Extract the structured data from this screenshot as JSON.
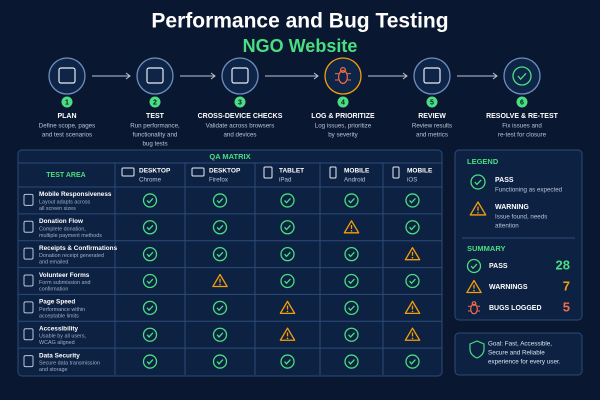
{
  "header": {
    "title": "Performance and Bug Testing",
    "subtitle": "NGO Website"
  },
  "steps": [
    {
      "number": 1,
      "title": "PLAN",
      "description": [
        "Define scope, pages",
        "and test scenarios"
      ]
    },
    {
      "number": 2,
      "title": "TEST",
      "description": [
        "Run performance,",
        "functionality and",
        "bug tests"
      ]
    },
    {
      "number": 3,
      "title": "CROSS-DEVICE CHECKS",
      "description": [
        "Validate across browsers",
        "and devices"
      ]
    },
    {
      "number": 4,
      "title": "LOG & PRIORITIZE",
      "description": [
        "Log issues, prioritize",
        "by severity"
      ]
    },
    {
      "number": 5,
      "title": "REVIEW",
      "description": [
        "Review results",
        "and metrics"
      ]
    },
    {
      "number": 6,
      "title": "RESOLVE & RE-TEST",
      "description": [
        "Fix issues and",
        "re-test for closure"
      ]
    }
  ],
  "matrix": {
    "title": "QA MATRIX",
    "area_header": "TEST AREA",
    "columns": [
      {
        "device": "DESKTOP",
        "browser": "Chrome"
      },
      {
        "device": "DESKTOP",
        "browser": "Firefox"
      },
      {
        "device": "TABLET",
        "browser": "iPad"
      },
      {
        "device": "MOBILE",
        "browser": "Android"
      },
      {
        "device": "MOBILE",
        "browser": "iOS"
      }
    ],
    "rows": [
      {
        "area": "Mobile Responsiveness",
        "description": [
          "Layout adapts across",
          "all screen sizes"
        ],
        "statuses": [
          "pass",
          "pass",
          "pass",
          "pass",
          "pass"
        ]
      },
      {
        "area": "Donation Flow",
        "description": [
          "Complete donation,",
          "multiple payment methods"
        ],
        "statuses": [
          "pass",
          "pass",
          "pass",
          "warning",
          "pass"
        ]
      },
      {
        "area": "Receipts & Confirmations",
        "description": [
          "Donation receipt generated",
          "and emailed"
        ],
        "statuses": [
          "pass",
          "pass",
          "pass",
          "pass",
          "warning"
        ]
      },
      {
        "area": "Volunteer Forms",
        "description": [
          "Form submission and",
          "confirmation"
        ],
        "statuses": [
          "pass",
          "warning",
          "pass",
          "pass",
          "pass"
        ]
      },
      {
        "area": "Page Speed",
        "description": [
          "Performance within",
          "acceptable limits"
        ],
        "statuses": [
          "pass",
          "pass",
          "warning",
          "pass",
          "warning"
        ]
      },
      {
        "area": "Accessibility",
        "description": [
          "Usable by all users,",
          "WCAG aligned"
        ],
        "statuses": [
          "pass",
          "pass",
          "warning",
          "pass",
          "warning"
        ]
      },
      {
        "area": "Data Security",
        "description": [
          "Secure data transmission",
          "and storage"
        ],
        "statuses": [
          "pass",
          "pass",
          "pass",
          "pass",
          "pass"
        ]
      }
    ]
  },
  "legend": {
    "title": "LEGEND",
    "items": [
      {
        "label": "PASS",
        "description": [
          "Functioning as expected"
        ]
      },
      {
        "label": "WARNING",
        "description": [
          "Issue found, needs",
          "attention"
        ]
      }
    ]
  },
  "summary": {
    "title": "SUMMARY",
    "items": [
      {
        "label": "PASS",
        "count": 28
      },
      {
        "label": "WARNINGS",
        "count": 7
      },
      {
        "label": "BUGS LOGGED",
        "count": 5
      }
    ]
  },
  "goal": [
    "Goal: Fast, Accessible,",
    "Secure and Reliable",
    "experience for every user."
  ]
}
